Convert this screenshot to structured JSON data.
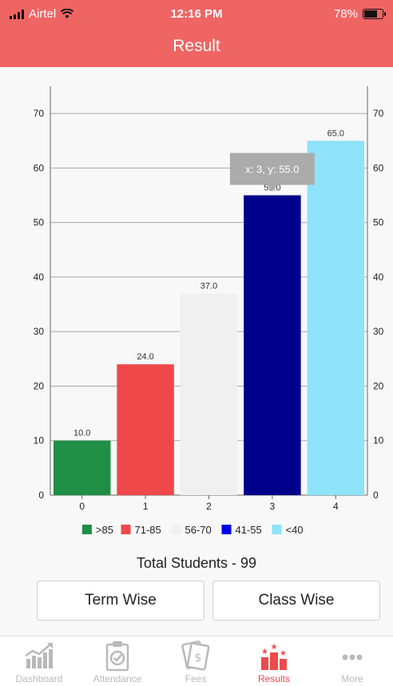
{
  "status_bar": {
    "carrier": "Airtel",
    "time": "12:16 PM",
    "battery": "78%",
    "battery_level": 0.78
  },
  "header": {
    "title": "Result"
  },
  "chart_data": {
    "type": "bar",
    "categories": [
      "0",
      "1",
      "2",
      "3",
      "4"
    ],
    "values": [
      10.0,
      24.0,
      37.0,
      55.0,
      65.0
    ],
    "value_labels": [
      "10.0",
      "24.0",
      "37.0",
      "55.0",
      "65.0"
    ],
    "colors": [
      "#1f8f45",
      "#ee484b",
      "#f0f0f0",
      "#00008b",
      "#8ee3fb"
    ],
    "legend": [
      {
        "label": ">85",
        "color": "#1f8f45"
      },
      {
        "label": "71-85",
        "color": "#ee484b"
      },
      {
        "label": "56-70",
        "color": "#f0f0f0"
      },
      {
        "label": "41-55",
        "color": "#0000e6"
      },
      {
        "label": "<40",
        "color": "#8ee3fb"
      }
    ],
    "legend_position": "bottom",
    "ylim": [
      0,
      75
    ],
    "yticks": [
      0,
      10,
      20,
      30,
      40,
      50,
      60,
      70
    ],
    "grid": true,
    "right_axis": true,
    "tooltip": {
      "text": "x: 3, y: 55.0",
      "category_index": 3
    }
  },
  "summary": {
    "total_students": "Total Students - 99"
  },
  "segments": {
    "term": "Term Wise",
    "class": "Class Wise"
  },
  "tabs": [
    {
      "label": "Dashboard",
      "icon": "dashboard-chart-icon"
    },
    {
      "label": "Attendance",
      "icon": "clipboard-check-icon"
    },
    {
      "label": "Fees",
      "icon": "money-icon"
    },
    {
      "label": "Results",
      "icon": "podium-stars-icon"
    },
    {
      "label": "More",
      "icon": "more-dots-icon"
    }
  ],
  "accent_color": "#ef4a4c"
}
